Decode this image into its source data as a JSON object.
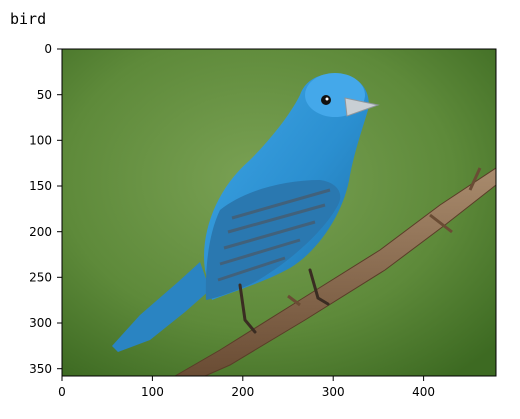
{
  "output": {
    "text": "bird"
  },
  "plot": {
    "image_content": "bird-photo",
    "x_ticks": [
      0,
      100,
      200,
      300,
      400
    ],
    "y_ticks": [
      0,
      50,
      100,
      150,
      200,
      250,
      300,
      350
    ],
    "x_range": [
      0,
      480
    ],
    "y_range": [
      360,
      0
    ],
    "colors": {
      "background_green": "#5e8a3a",
      "bird_blue": "#2f98d6",
      "branch_brown": "#8a6a4e"
    }
  }
}
